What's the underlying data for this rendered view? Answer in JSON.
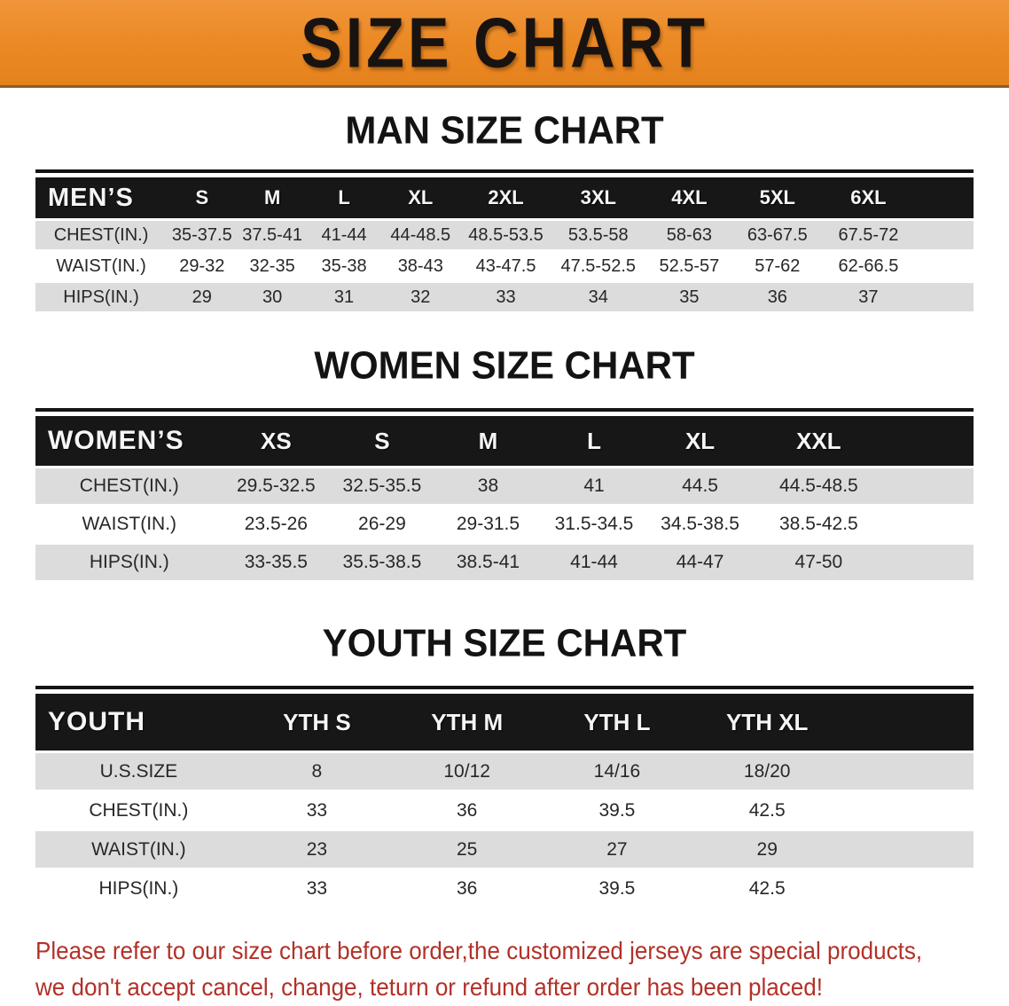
{
  "banner": {
    "title": "SIZE CHART",
    "background_color": "#EC8A26",
    "text_color": "#181310"
  },
  "sections": {
    "men": {
      "heading": "MAN SIZE CHART",
      "table": {
        "header": [
          "MEN’S",
          "S",
          "M",
          "L",
          "XL",
          "2XL",
          "3XL",
          "4XL",
          "5XL",
          "6XL"
        ],
        "rows": [
          [
            "CHEST(IN.)",
            "35-37.5",
            "37.5-41",
            "41-44",
            "44-48.5",
            "48.5-53.5",
            "53.5-58",
            "58-63",
            "63-67.5",
            "67.5-72"
          ],
          [
            "WAIST(IN.)",
            "29-32",
            "32-35",
            "35-38",
            "38-43",
            "43-47.5",
            "47.5-52.5",
            "52.5-57",
            "57-62",
            "62-66.5"
          ],
          [
            "HIPS(IN.)",
            "29",
            "30",
            "31",
            "32",
            "33",
            "34",
            "35",
            "36",
            "37"
          ]
        ]
      }
    },
    "women": {
      "heading": "WOMEN SIZE CHART",
      "table": {
        "header": [
          "WOMEN’S",
          "XS",
          "S",
          "M",
          "L",
          "XL",
          "XXL"
        ],
        "rows": [
          [
            "CHEST(IN.)",
            "29.5-32.5",
            "32.5-35.5",
            "38",
            "41",
            "44.5",
            "44.5-48.5"
          ],
          [
            "WAIST(IN.)",
            "23.5-26",
            "26-29",
            "29-31.5",
            "31.5-34.5",
            "34.5-38.5",
            "38.5-42.5"
          ],
          [
            "HIPS(IN.)",
            "33-35.5",
            "35.5-38.5",
            "38.5-41",
            "41-44",
            "44-47",
            "47-50"
          ]
        ]
      }
    },
    "youth": {
      "heading": "YOUTH SIZE CHART",
      "table": {
        "header": [
          "YOUTH",
          "YTH S",
          "YTH M",
          "YTH L",
          "YTH XL"
        ],
        "rows": [
          [
            "U.S.SIZE",
            "8",
            "10/12",
            "14/16",
            "18/20"
          ],
          [
            "CHEST(IN.)",
            "33",
            "36",
            "39.5",
            "42.5"
          ],
          [
            "WAIST(IN.)",
            "23",
            "25",
            "27",
            "29"
          ],
          [
            "HIPS(IN.)",
            "33",
            "36",
            "39.5",
            "42.5"
          ]
        ]
      }
    }
  },
  "notice": {
    "line1": "Please refer to our size chart before order,the customized jerseys are special products,",
    "line2": "we don't accept cancel, change, teturn or refund after order has been placed!",
    "color": "#B23128"
  },
  "colors": {
    "banner_orange": "#EC8A26",
    "table_header_black": "#171717",
    "row_stripe_gray": "#DCDCDC"
  }
}
